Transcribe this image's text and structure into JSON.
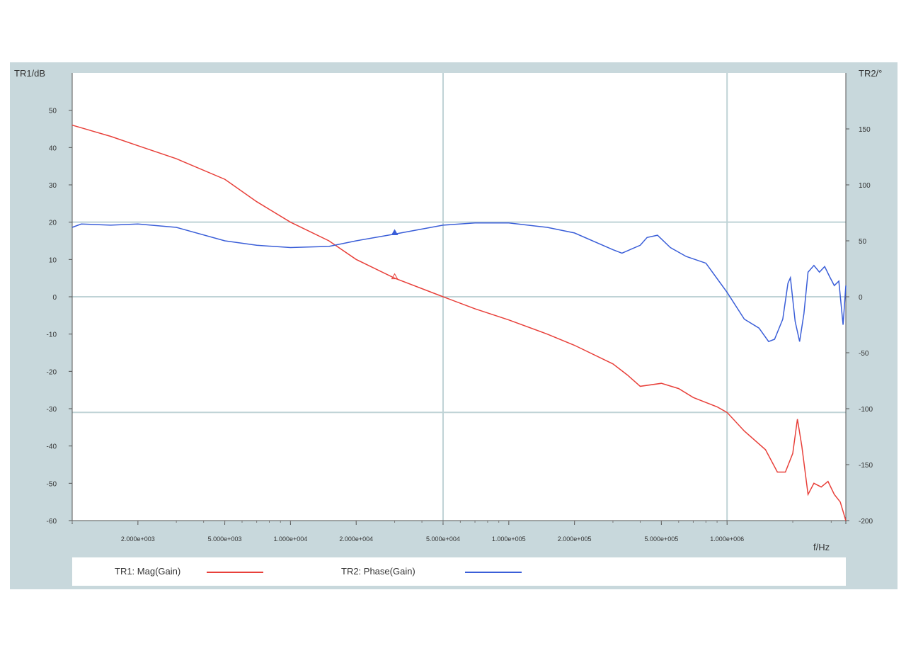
{
  "chart_data": {
    "type": "line",
    "title": "",
    "left_axis": {
      "label": "TR1/dB",
      "ylim": [
        -60,
        60
      ],
      "ticks": [
        "50",
        "40",
        "30",
        "20",
        "10",
        "0",
        "-10",
        "-20",
        "-30",
        "-40",
        "-50",
        "-60"
      ],
      "tick_values": [
        50,
        40,
        30,
        20,
        10,
        0,
        -10,
        -20,
        -30,
        -40,
        -50,
        -60
      ]
    },
    "right_axis": {
      "label": "TR2/°",
      "ylim": [
        -200,
        200
      ],
      "ticks": [
        "150",
        "100",
        "50",
        "0",
        "-50",
        "-100",
        "-150",
        "-200"
      ],
      "tick_values": [
        150,
        100,
        50,
        0,
        -50,
        -100,
        -150,
        -200
      ]
    },
    "x_axis": {
      "label": "f/Hz",
      "scale": "log",
      "xlim": [
        1000,
        3500000
      ],
      "ticks": [
        "2.000e+003",
        "5.000e+003",
        "1.000e+004",
        "2.000e+004",
        "5.000e+004",
        "1.000e+005",
        "2.000e+005",
        "5.000e+005",
        "1.000e+006"
      ],
      "tick_values": [
        2000,
        5000,
        10000,
        20000,
        50000,
        100000,
        200000,
        500000,
        1000000
      ]
    },
    "gridlines": {
      "x": [
        50000,
        1000000
      ],
      "y_left": [
        20,
        0,
        -31
      ]
    },
    "series": [
      {
        "name": "TR1: Mag(Gain)",
        "axis": "left",
        "color": "#e8403a",
        "marker_at": 30000,
        "points": [
          [
            1000,
            46
          ],
          [
            1500,
            43
          ],
          [
            2000,
            40.5
          ],
          [
            3000,
            37
          ],
          [
            5000,
            31.5
          ],
          [
            7000,
            25.5
          ],
          [
            10000,
            20
          ],
          [
            15000,
            15
          ],
          [
            20000,
            10
          ],
          [
            30000,
            5
          ],
          [
            50000,
            0
          ],
          [
            70000,
            -3.2
          ],
          [
            100000,
            -6.2
          ],
          [
            150000,
            -10
          ],
          [
            200000,
            -13
          ],
          [
            300000,
            -18
          ],
          [
            350000,
            -21
          ],
          [
            400000,
            -24
          ],
          [
            500000,
            -23.2
          ],
          [
            600000,
            -24.6
          ],
          [
            700000,
            -27
          ],
          [
            900000,
            -29.5
          ],
          [
            1000000,
            -31
          ],
          [
            1200000,
            -36
          ],
          [
            1500000,
            -41
          ],
          [
            1700000,
            -47
          ],
          [
            1850000,
            -47
          ],
          [
            2000000,
            -42
          ],
          [
            2100000,
            -32.8
          ],
          [
            2200000,
            -40
          ],
          [
            2350000,
            -53
          ],
          [
            2500000,
            -50
          ],
          [
            2700000,
            -51
          ],
          [
            2900000,
            -49.5
          ],
          [
            3100000,
            -53
          ],
          [
            3300000,
            -55
          ],
          [
            3500000,
            -60
          ]
        ]
      },
      {
        "name": "TR2: Phase(Gain)",
        "axis": "right",
        "color": "#3a5ed8",
        "marker_at": 30000,
        "points": [
          [
            1000,
            62
          ],
          [
            1100,
            65
          ],
          [
            1500,
            64
          ],
          [
            2000,
            65
          ],
          [
            3000,
            62
          ],
          [
            5000,
            50
          ],
          [
            7000,
            46
          ],
          [
            10000,
            44
          ],
          [
            15000,
            45
          ],
          [
            20000,
            50
          ],
          [
            30000,
            56
          ],
          [
            50000,
            64
          ],
          [
            70000,
            66
          ],
          [
            100000,
            66
          ],
          [
            150000,
            62
          ],
          [
            200000,
            57
          ],
          [
            300000,
            42
          ],
          [
            330000,
            39
          ],
          [
            400000,
            46
          ],
          [
            430000,
            53
          ],
          [
            480000,
            55
          ],
          [
            550000,
            44
          ],
          [
            650000,
            36
          ],
          [
            800000,
            30
          ],
          [
            1000000,
            4
          ],
          [
            1200000,
            -20
          ],
          [
            1400000,
            -28
          ],
          [
            1550000,
            -40
          ],
          [
            1650000,
            -38
          ],
          [
            1800000,
            -20
          ],
          [
            1900000,
            12
          ],
          [
            1950000,
            17
          ],
          [
            2050000,
            -22
          ],
          [
            2150000,
            -40
          ],
          [
            2250000,
            -15
          ],
          [
            2350000,
            22
          ],
          [
            2500000,
            28
          ],
          [
            2650000,
            22
          ],
          [
            2800000,
            27
          ],
          [
            2950000,
            18
          ],
          [
            3100000,
            10
          ],
          [
            3250000,
            14
          ],
          [
            3400000,
            -25
          ],
          [
            3500000,
            10
          ]
        ]
      }
    ]
  },
  "legend": {
    "tr1_label": "TR1: Mag(Gain)",
    "tr2_label": "TR2: Phase(Gain)"
  }
}
